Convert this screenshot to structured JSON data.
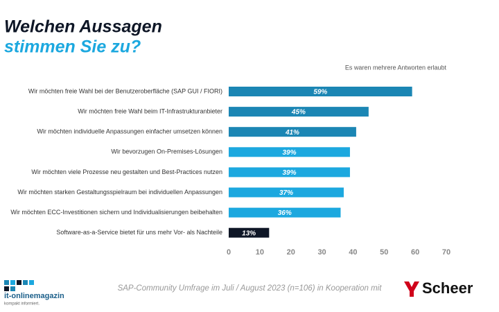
{
  "chart_data": {
    "type": "hbar",
    "title": [
      "Welchen Aussagen",
      "stimmen Sie zu?"
    ],
    "annotation": "Es waren mehrere Antworten erlaubt",
    "categories": [
      "Wir möchten freie Wahl bei der Benutzeroberfläche (SAP GUI / FIORI)",
      "Wir möchten freie Wahl beim IT-Infrastrukturanbieter",
      "Wir möchten individuelle Anpassungen einfacher umsetzen können",
      "Wir bevorzugen On-Premises-Lösungen",
      "Wir möchten viele Prozesse neu gestalten und Best-Practices nutzen",
      "Wir möchten starken Gestaltungsspielraum bei individuellen Anpassungen",
      "Wir möchten ECC-Investitionen sichern und Individualisierungen beibehalten",
      "Software-as-a-Service bietet für uns mehr Vor- als Nachteile"
    ],
    "values": [
      59,
      45,
      41,
      39,
      39,
      37,
      36,
      13
    ],
    "value_labels": [
      "59%",
      "45%",
      "41%",
      "39%",
      "39%",
      "37%",
      "36%",
      "13%"
    ],
    "colors": [
      "#1b86b4",
      "#1b86b4",
      "#1b86b4",
      "#1ca8df",
      "#1ca8df",
      "#1ca8df",
      "#1ca8df",
      "#0e1626"
    ],
    "xlim": [
      0,
      70
    ],
    "xticks": [
      0,
      10,
      20,
      30,
      40,
      50,
      60,
      70
    ],
    "grid": false,
    "footer": "SAP-Community Umfrage im Juli / August 2023 (n=106) in Kooperation mit"
  },
  "logos": {
    "it_online": {
      "name": "it-onlinemagazin",
      "tagline": "kompakt informiert."
    },
    "scheer": "Scheer"
  }
}
